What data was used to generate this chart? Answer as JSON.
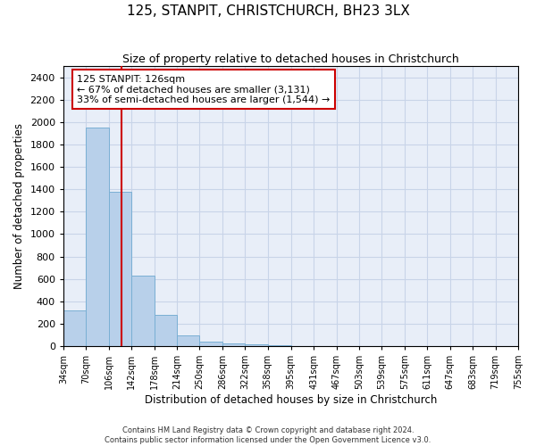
{
  "title": "125, STANPIT, CHRISTCHURCH, BH23 3LX",
  "subtitle": "Size of property relative to detached houses in Christchurch",
  "xlabel": "Distribution of detached houses by size in Christchurch",
  "ylabel": "Number of detached properties",
  "bar_color": "#b8d0ea",
  "bar_edge_color": "#7aafd4",
  "bin_edges": [
    34,
    70,
    106,
    142,
    178,
    214,
    250,
    286,
    322,
    358,
    395,
    431,
    467,
    503,
    539,
    575,
    611,
    647,
    683,
    719,
    755
  ],
  "bar_heights": [
    320,
    1950,
    1380,
    630,
    280,
    95,
    40,
    25,
    15,
    5,
    0,
    0,
    0,
    0,
    0,
    0,
    0,
    0,
    0,
    0
  ],
  "property_size": 126,
  "vline_color": "#cc0000",
  "ylim": [
    0,
    2500
  ],
  "yticks": [
    0,
    200,
    400,
    600,
    800,
    1000,
    1200,
    1400,
    1600,
    1800,
    2000,
    2200,
    2400
  ],
  "annotation_title": "125 STANPIT: 126sqm",
  "annotation_line1": "← 67% of detached houses are smaller (3,131)",
  "annotation_line2": "33% of semi-detached houses are larger (1,544) →",
  "annotation_box_color": "#cc0000",
  "footnote1": "Contains HM Land Registry data © Crown copyright and database right 2024.",
  "footnote2": "Contains public sector information licensed under the Open Government Licence v3.0.",
  "grid_color": "#c8d4e8",
  "background_color": "#e8eef8"
}
